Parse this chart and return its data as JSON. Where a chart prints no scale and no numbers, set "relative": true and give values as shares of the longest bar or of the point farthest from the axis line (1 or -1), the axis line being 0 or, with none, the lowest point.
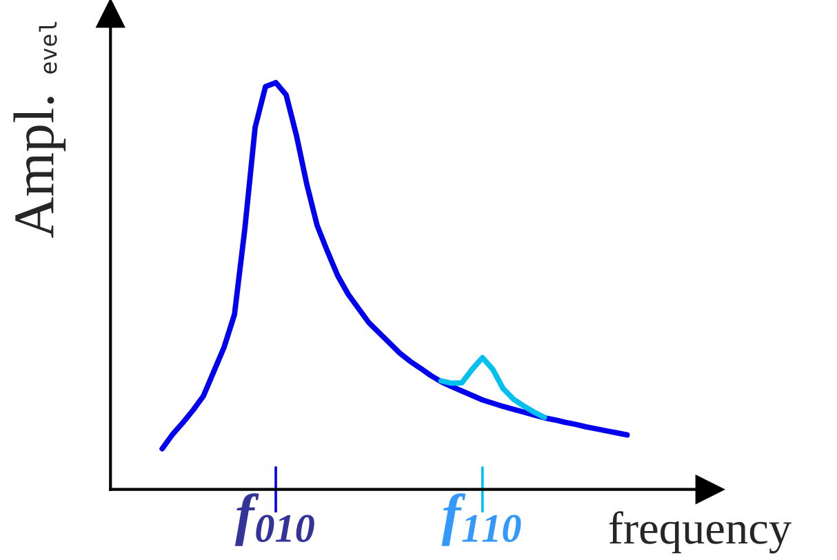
{
  "chart_data": {
    "type": "line",
    "relative": true,
    "ylabel": "Ampl.",
    "xlabel": "frequency",
    "annotations": [
      "evel"
    ],
    "categories": [
      null,
      null,
      null,
      null,
      null,
      null,
      null,
      null,
      null,
      null,
      null,
      "f$_{010}$",
      null,
      null,
      null,
      null,
      null,
      null,
      null,
      null,
      null,
      null,
      null,
      null,
      null,
      null,
      null,
      null,
      null,
      null,
      null,
      "f$_{110}$",
      null,
      null,
      null,
      null,
      null,
      null,
      null,
      null,
      null,
      null,
      null,
      null,
      null,
      null
    ],
    "grid": false,
    "legend": false,
    "marker": "none",
    "line_style": "solid",
    "series": [
      {
        "color": "#0000ee",
        "values": [
          0.1,
          0.135,
          0.164,
          0.195,
          0.23,
          0.29,
          0.35,
          0.43,
          0.64,
          0.89,
          0.99,
          1.0,
          0.97,
          0.87,
          0.75,
          0.649,
          0.585,
          0.525,
          0.48,
          0.445,
          0.41,
          0.385,
          0.36,
          0.335,
          0.315,
          0.298,
          0.28,
          0.265,
          0.253,
          0.242,
          0.231,
          0.22,
          0.212,
          0.204,
          0.197,
          0.19,
          0.183,
          0.176,
          0.171,
          0.165,
          0.16,
          0.154,
          0.149,
          0.144,
          0.139,
          0.134
        ]
      },
      {
        "color": "#00c0f0",
        "values": [
          null,
          null,
          null,
          null,
          null,
          null,
          null,
          null,
          null,
          null,
          null,
          null,
          null,
          null,
          null,
          null,
          null,
          null,
          null,
          null,
          null,
          null,
          null,
          null,
          null,
          null,
          null,
          0.267,
          0.261,
          0.262,
          0.295,
          0.324,
          0.295,
          0.248,
          0.222,
          0.205,
          0.19,
          0.177,
          null,
          null,
          null,
          null,
          null,
          null,
          null,
          null
        ]
      }
    ]
  }
}
